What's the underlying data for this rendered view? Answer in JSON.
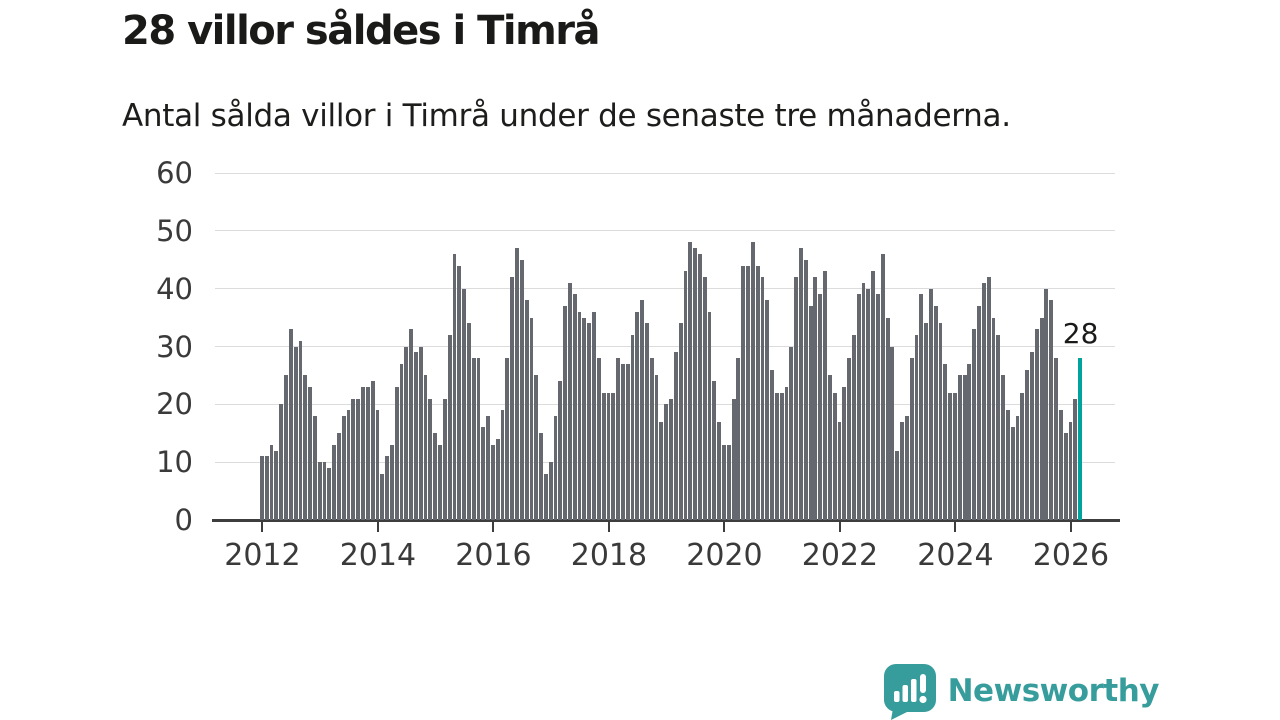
{
  "header": {
    "title": "28 villor såldes i Timrå",
    "subtitle": "Antal sålda villor i Timrå under de senaste tre månaderna."
  },
  "chart_data": {
    "type": "bar",
    "title": "28 villor såldes i Timrå",
    "subtitle": "Antal sålda villor i Timrå under de senaste tre månaderna.",
    "x_start_year": 2012,
    "frequency": "monthly-rolling-3-months",
    "values": [
      11,
      11,
      13,
      12,
      20,
      25,
      33,
      30,
      31,
      25,
      23,
      18,
      10,
      10,
      9,
      13,
      15,
      18,
      19,
      21,
      21,
      23,
      23,
      24,
      19,
      8,
      11,
      13,
      23,
      27,
      30,
      33,
      29,
      30,
      25,
      21,
      15,
      13,
      21,
      32,
      46,
      44,
      40,
      34,
      28,
      28,
      16,
      18,
      13,
      14,
      19,
      28,
      42,
      47,
      45,
      38,
      35,
      25,
      15,
      8,
      10,
      18,
      24,
      37,
      41,
      39,
      36,
      35,
      34,
      36,
      28,
      22,
      22,
      22,
      28,
      27,
      27,
      32,
      36,
      38,
      34,
      28,
      25,
      17,
      20,
      21,
      29,
      34,
      43,
      48,
      47,
      46,
      42,
      36,
      24,
      17,
      13,
      13,
      21,
      28,
      44,
      44,
      48,
      44,
      42,
      38,
      26,
      22,
      22,
      23,
      30,
      42,
      47,
      45,
      37,
      42,
      39,
      43,
      25,
      22,
      17,
      23,
      28,
      32,
      39,
      41,
      40,
      43,
      39,
      46,
      35,
      30,
      12,
      17,
      18,
      28,
      32,
      39,
      34,
      40,
      37,
      34,
      27,
      22,
      22,
      25,
      25,
      27,
      33,
      37,
      41,
      42,
      35,
      32,
      25,
      19,
      16,
      18,
      22,
      26,
      29,
      33,
      35,
      40,
      38,
      28,
      19,
      15,
      17,
      21,
      28
    ],
    "highlight": {
      "index": 170,
      "value": 28,
      "label": "28",
      "color": "#00a29e"
    },
    "bar_color": "#65686f",
    "ylim": [
      0,
      60
    ],
    "yticks": [
      0,
      10,
      20,
      30,
      40,
      50,
      60
    ],
    "xticks": [
      2012,
      2014,
      2016,
      2018,
      2020,
      2022,
      2024,
      2026
    ],
    "grid": "horizontal",
    "legend": "none",
    "axis_color": "#3d3d3d",
    "grid_color": "#dcdcdc",
    "xlabel": "",
    "ylabel": ""
  },
  "logo": {
    "text": "Newsworthy",
    "color": "#379d9c",
    "icon": "newsworthy-speech-bubble-bar-chart-icon"
  }
}
